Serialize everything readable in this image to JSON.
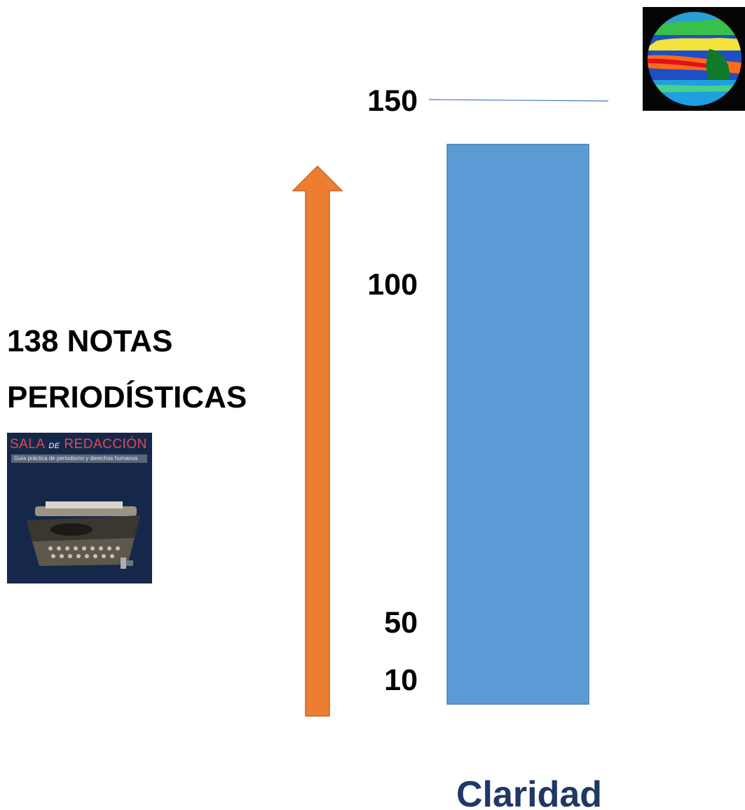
{
  "headline": {
    "line1": "138  NOTAS",
    "line2": "PERIODÍSTICAS"
  },
  "book_cover": {
    "title_part1": "SALA",
    "title_part2": "DE",
    "title_part3": "REDACCIÓN",
    "subtitle": "Guía práctica de periodismo y derechos humanos"
  },
  "colors": {
    "bar": "#5b9bd5",
    "arrow": "#ed7d31",
    "label": "#1f3864",
    "reference_line": "#4472c4"
  },
  "chart_data": {
    "type": "bar",
    "categories": [
      "Claridad"
    ],
    "values": [
      138
    ],
    "yticks": [
      {
        "value": 150,
        "label": "150"
      },
      {
        "value": 100,
        "label": "100"
      },
      {
        "value": 50,
        "label": "50"
      },
      {
        "value": 10,
        "label": "10"
      }
    ],
    "reference_line": 150,
    "ylim": [
      0,
      150
    ],
    "grid": false,
    "legend": "none"
  }
}
